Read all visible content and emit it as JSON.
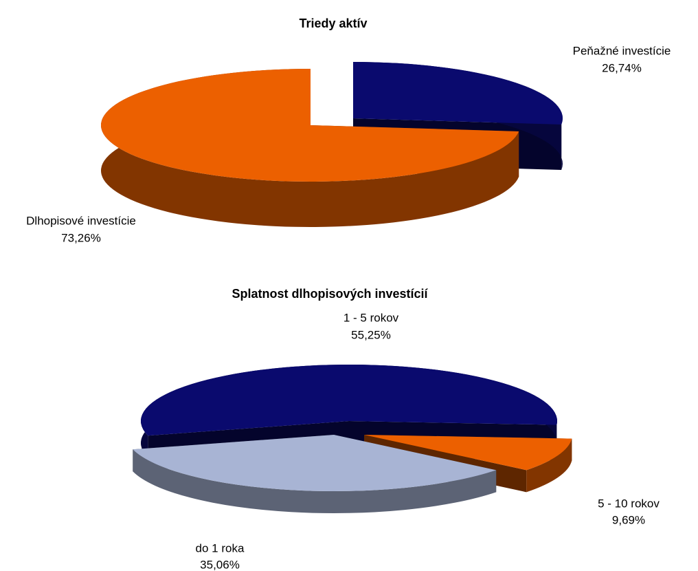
{
  "chart_data": [
    {
      "type": "pie",
      "title": "Triedy aktív",
      "categories": [
        "Peňažné investície",
        "Dlhopisové investície"
      ],
      "values": [
        26.74,
        73.26
      ],
      "value_labels": [
        "26,74%",
        "73,26%"
      ],
      "colors": [
        "#0a0a6e",
        "#ec6000"
      ]
    },
    {
      "type": "pie",
      "title": "Splatnost dlhopisových investícií",
      "categories": [
        "1 - 5 rokov",
        "5 - 10 rokov",
        "do 1 roka"
      ],
      "values": [
        55.25,
        9.69,
        35.06
      ],
      "value_labels": [
        "55,25%",
        "9,69%",
        "35,06%"
      ],
      "colors": [
        "#0a0a6e",
        "#ec6000",
        "#a8b4d4"
      ]
    }
  ]
}
